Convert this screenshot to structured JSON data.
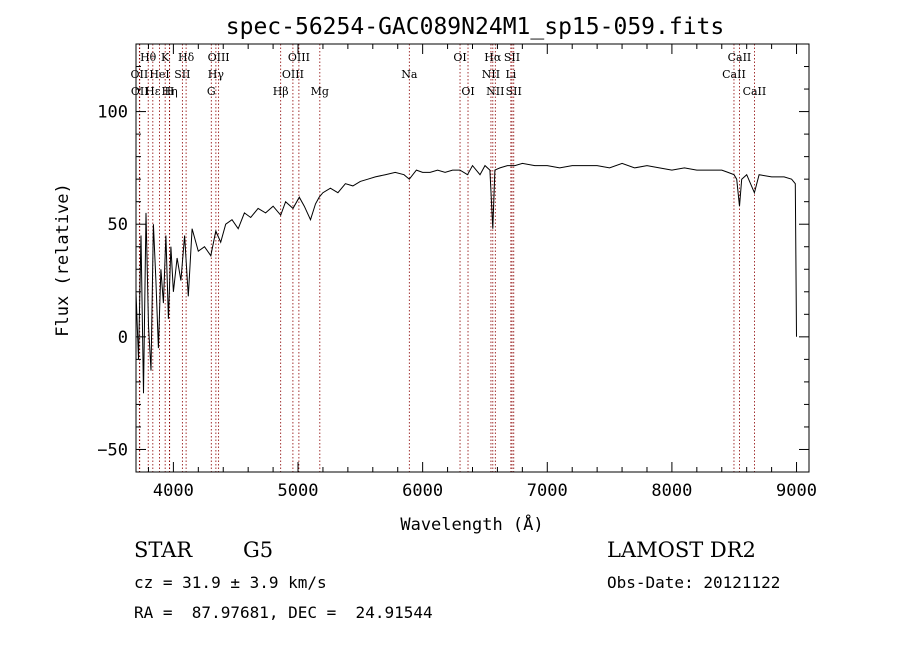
{
  "chart_data": {
    "type": "line",
    "title": "spec-56254-GAC089N24M1_sp15-059.fits",
    "xlabel": "Wavelength (Å)",
    "ylabel": "Flux (relative)",
    "xlim": [
      3700,
      9100
    ],
    "ylim": [
      -60,
      130
    ],
    "x_ticks": [
      4000,
      5000,
      6000,
      7000,
      8000,
      9000
    ],
    "y_ticks": [
      -50,
      0,
      50,
      100
    ],
    "grid": false,
    "series_color": "#000000",
    "line_marker_color": "#8b0000",
    "spectrum": {
      "x": [
        3700,
        3720,
        3740,
        3760,
        3780,
        3800,
        3820,
        3840,
        3860,
        3880,
        3900,
        3920,
        3940,
        3960,
        3980,
        4000,
        4030,
        4060,
        4090,
        4120,
        4150,
        4200,
        4250,
        4300,
        4340,
        4380,
        4420,
        4470,
        4520,
        4570,
        4620,
        4680,
        4740,
        4800,
        4861,
        4900,
        4960,
        5010,
        5050,
        5100,
        5140,
        5170,
        5200,
        5260,
        5320,
        5380,
        5440,
        5500,
        5560,
        5620,
        5700,
        5780,
        5850,
        5893,
        5950,
        6000,
        6060,
        6120,
        6180,
        6240,
        6300,
        6360,
        6400,
        6460,
        6500,
        6540,
        6563,
        6580,
        6620,
        6680,
        6740,
        6800,
        6900,
        7000,
        7100,
        7200,
        7300,
        7400,
        7500,
        7600,
        7700,
        7800,
        7900,
        8000,
        8100,
        8200,
        8300,
        8400,
        8450,
        8498,
        8520,
        8542,
        8560,
        8600,
        8662,
        8700,
        8800,
        8900,
        8960,
        8990,
        9000
      ],
      "y": [
        20,
        -10,
        45,
        -25,
        55,
        5,
        -15,
        50,
        25,
        -5,
        30,
        15,
        45,
        8,
        40,
        20,
        35,
        25,
        45,
        18,
        48,
        38,
        40,
        36,
        47,
        42,
        50,
        52,
        48,
        55,
        53,
        57,
        55,
        58,
        54,
        60,
        57,
        62,
        58,
        52,
        59,
        62,
        64,
        66,
        64,
        68,
        67,
        69,
        70,
        71,
        72,
        73,
        72,
        70,
        74,
        73,
        73,
        74,
        73,
        74,
        74,
        72,
        76,
        72,
        76,
        74,
        48,
        74,
        75,
        76,
        76,
        77,
        76,
        76,
        75,
        76,
        76,
        76,
        75,
        77,
        75,
        76,
        75,
        74,
        75,
        74,
        74,
        74,
        73,
        72,
        70,
        58,
        70,
        72,
        64,
        72,
        71,
        71,
        70,
        68,
        0
      ]
    },
    "line_labels": [
      {
        "label": "Hθ",
        "x": 3798,
        "row": 1
      },
      {
        "label": "K",
        "x": 3934,
        "row": 1
      },
      {
        "label": "Hδ",
        "x": 4102,
        "row": 1
      },
      {
        "label": "OIII",
        "x": 4363,
        "row": 1
      },
      {
        "label": "OIII",
        "x": 5007,
        "row": 1
      },
      {
        "label": "OI",
        "x": 6300,
        "row": 1
      },
      {
        "label": "Hα",
        "x": 6563,
        "row": 1
      },
      {
        "label": "SII",
        "x": 6717,
        "row": 1
      },
      {
        "label": "CaII",
        "x": 8542,
        "row": 1
      },
      {
        "label": "OII",
        "x": 3727,
        "row": 2
      },
      {
        "label": "HeI",
        "x": 3889,
        "row": 2
      },
      {
        "label": "SII",
        "x": 4072,
        "row": 2
      },
      {
        "label": "Hγ",
        "x": 4341,
        "row": 2
      },
      {
        "label": "OIII",
        "x": 4959,
        "row": 2
      },
      {
        "label": "Na",
        "x": 5893,
        "row": 2
      },
      {
        "label": "NII",
        "x": 6548,
        "row": 2
      },
      {
        "label": "Li",
        "x": 6708,
        "row": 2
      },
      {
        "label": "CaII",
        "x": 8498,
        "row": 2
      },
      {
        "label": "OII",
        "x": 3730,
        "row": 3
      },
      {
        "label": "Hε",
        "x": 3835,
        "row": 3
      },
      {
        "label": "Hη",
        "x": 3970,
        "row": 3
      },
      {
        "label": "H",
        "x": 3968,
        "row": 3
      },
      {
        "label": "G",
        "x": 4304,
        "row": 3
      },
      {
        "label": "Hβ",
        "x": 4861,
        "row": 3
      },
      {
        "label": "Mg",
        "x": 5175,
        "row": 3
      },
      {
        "label": "OI",
        "x": 6364,
        "row": 3
      },
      {
        "label": "NII",
        "x": 6583,
        "row": 3
      },
      {
        "label": "SII",
        "x": 6731,
        "row": 3
      },
      {
        "label": "CaII",
        "x": 8662,
        "row": 3
      }
    ]
  },
  "footer": {
    "object_class": "STAR",
    "subclass": "G5",
    "survey": "LAMOST DR2",
    "redshift_text": "cz = 31.9 ± 3.9 km/s",
    "obs_date": "Obs-Date: 20121122",
    "coords": "RA =  87.97681, DEC =  24.91544"
  }
}
